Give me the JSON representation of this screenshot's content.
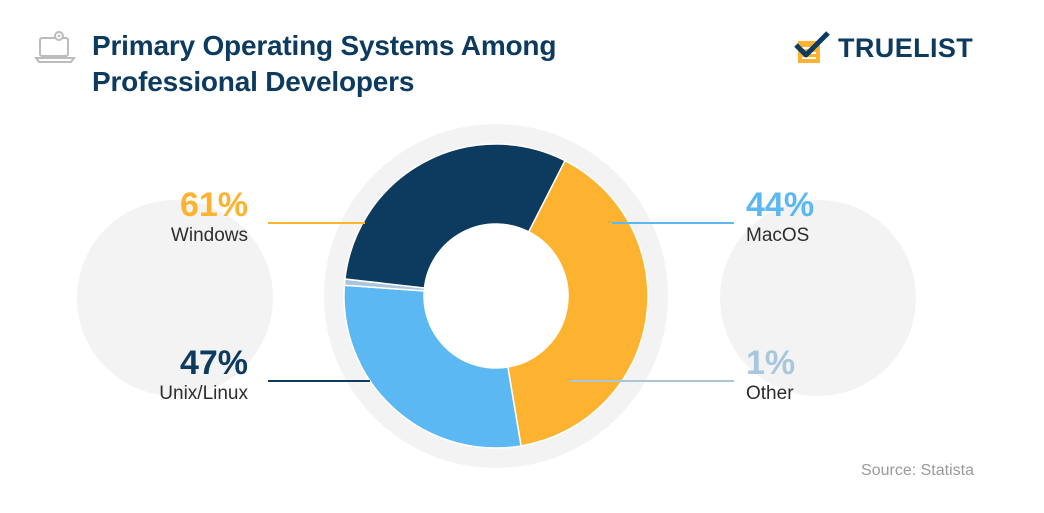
{
  "title_lines": [
    "Primary Operating Systems Among",
    "Professional Developers"
  ],
  "logo_text": "TRUELIST",
  "source": "Source: Statista",
  "colors": {
    "title": "#0d3a5f",
    "windows": "#fdb32f",
    "macos": "#5bb8f2",
    "unix": "#0d3a5f",
    "other": "#a9c6dc",
    "bubble": "#f3f3f3"
  },
  "chart_data": {
    "type": "pie",
    "donut": true,
    "title": "Primary Operating Systems Among Professional Developers",
    "unit": "%",
    "slices": [
      {
        "label": "Windows",
        "value": 61,
        "display": "61%",
        "color": "#fdb32f"
      },
      {
        "label": "MacOS",
        "value": 44,
        "display": "44%",
        "color": "#5bb8f2"
      },
      {
        "label": "Other",
        "value": 1,
        "display": "1%",
        "color": "#a9c6dc"
      },
      {
        "label": "Unix/Linux",
        "value": 47,
        "display": "47%",
        "color": "#0d3a5f"
      }
    ]
  }
}
